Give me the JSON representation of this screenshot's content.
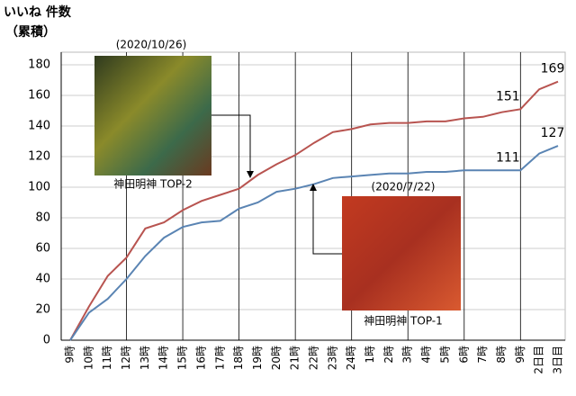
{
  "chart_data": {
    "type": "line",
    "y_label": [
      "いいね 件数",
      "（累積）"
    ],
    "categories": [
      "9時",
      "10時",
      "11時",
      "12時",
      "13時",
      "14時",
      "15時",
      "16時",
      "17時",
      "18時",
      "19時",
      "20時",
      "21時",
      "22時",
      "23時",
      "24時",
      "1時",
      "2時",
      "3時",
      "4時",
      "5時",
      "6時",
      "7時",
      "8時",
      "9時",
      "2日目",
      "3日目"
    ],
    "series": [
      {
        "color": "#b85450",
        "values": [
          0,
          22,
          42,
          54,
          73,
          77,
          85,
          91,
          95,
          99,
          108,
          115,
          121,
          129,
          136,
          138,
          141,
          142,
          142,
          143,
          143,
          145,
          146,
          149,
          151,
          164,
          169
        ],
        "value_labels": [
          null,
          null,
          null,
          null,
          null,
          null,
          null,
          null,
          null,
          null,
          null,
          null,
          null,
          null,
          null,
          null,
          null,
          null,
          null,
          null,
          null,
          null,
          null,
          null,
          "151",
          null,
          "169"
        ]
      },
      {
        "color": "#5a84b3",
        "values": [
          0,
          18,
          27,
          40,
          55,
          67,
          74,
          77,
          78,
          86,
          90,
          97,
          99,
          102,
          106,
          107,
          108,
          109,
          109,
          110,
          110,
          111,
          111,
          111,
          111,
          122,
          127
        ],
        "value_labels": [
          null,
          null,
          null,
          null,
          null,
          null,
          null,
          null,
          null,
          null,
          null,
          null,
          null,
          null,
          null,
          null,
          null,
          null,
          null,
          null,
          null,
          null,
          null,
          null,
          "111",
          null,
          "127"
        ]
      }
    ],
    "ylim": [
      0,
      180
    ],
    "yticks": [
      0,
      20,
      40,
      60,
      80,
      100,
      120,
      140,
      160,
      180
    ],
    "grid": true,
    "annotations": [
      {
        "date": "(2020/10/26)",
        "label": "神田明神 TOP-2"
      },
      {
        "date": "(2020/7/22)",
        "label": "神田明神 TOP-1"
      }
    ]
  }
}
